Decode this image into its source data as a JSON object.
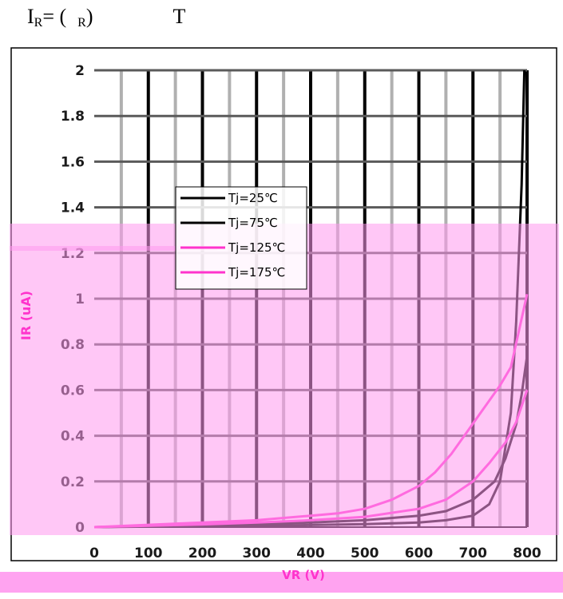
{
  "title": {
    "prefix": "I",
    "prefix_sub": "R",
    "mid": "= (",
    "var_sub": "R",
    "suffix": ")",
    "param": "T"
  },
  "chart_data": {
    "type": "line",
    "xlabel": "VR (V)",
    "ylabel": "IR (uA)",
    "xlim": [
      0,
      800
    ],
    "ylim": [
      0,
      2
    ],
    "x_ticks": [
      0,
      100,
      200,
      300,
      400,
      500,
      600,
      700,
      800
    ],
    "y_ticks": [
      0,
      0.2,
      0.4,
      0.6,
      0.8,
      1,
      1.2,
      1.4,
      1.6,
      1.8,
      2
    ],
    "y_tick_labels": [
      "0",
      "0.2",
      "0.4",
      "0.6",
      "0.8",
      "1",
      "1.2",
      "1.4",
      "1.6",
      "1.8",
      "2"
    ],
    "grid": true,
    "legend_position": "upper-left-center",
    "colors": {
      "black": "#000000",
      "magenta": "#ff33cc",
      "overlay": "#ff99ee",
      "grid": "#b0b0b0",
      "tick_label": "#1a1a1a"
    },
    "series": [
      {
        "name": "Tj=25℃",
        "color": "#000000",
        "x": [
          0,
          100,
          200,
          300,
          400,
          500,
          600,
          650,
          700,
          730,
          750,
          770,
          780,
          790,
          795
        ],
        "y": [
          0,
          0.002,
          0.004,
          0.006,
          0.009,
          0.013,
          0.02,
          0.03,
          0.05,
          0.1,
          0.2,
          0.5,
          0.9,
          1.5,
          2.0
        ]
      },
      {
        "name": "Tj=75℃",
        "color": "#000000",
        "x": [
          0,
          100,
          200,
          300,
          400,
          500,
          600,
          650,
          700,
          740,
          760,
          780,
          790,
          800
        ],
        "y": [
          0,
          0.004,
          0.008,
          0.013,
          0.02,
          0.03,
          0.05,
          0.07,
          0.12,
          0.2,
          0.3,
          0.45,
          0.58,
          0.75
        ]
      },
      {
        "name": "Tj=125℃",
        "color": "#ff33cc",
        "x": [
          0,
          100,
          200,
          300,
          400,
          500,
          600,
          650,
          700,
          730,
          760,
          780,
          800
        ],
        "y": [
          0,
          0.006,
          0.012,
          0.02,
          0.03,
          0.045,
          0.08,
          0.12,
          0.2,
          0.28,
          0.37,
          0.46,
          0.6
        ]
      },
      {
        "name": "Tj=175℃",
        "color": "#ff33cc",
        "x": [
          0,
          100,
          200,
          300,
          400,
          450,
          500,
          550,
          600,
          630,
          660,
          690,
          720,
          750,
          770,
          800
        ],
        "y": [
          0,
          0.01,
          0.02,
          0.03,
          0.05,
          0.06,
          0.08,
          0.12,
          0.18,
          0.24,
          0.32,
          0.42,
          0.52,
          0.62,
          0.7,
          1.02
        ]
      }
    ]
  }
}
